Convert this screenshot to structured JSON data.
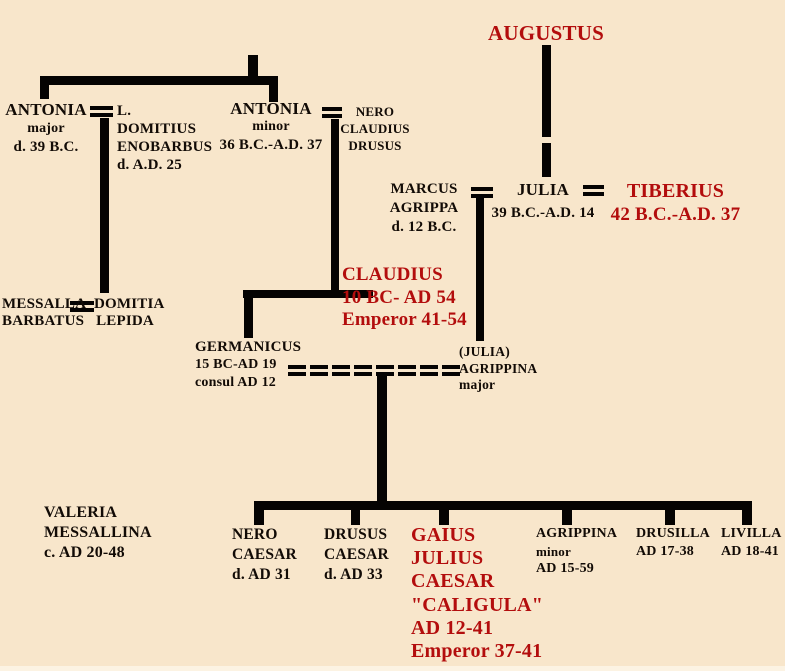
{
  "palette": {
    "background": "#f8e6cb",
    "text_black": "#120b06",
    "text_red": "#b30d0d",
    "line_black": "#050302"
  },
  "people": {
    "augustus": {
      "lines": [
        "AUGUSTUS"
      ]
    },
    "antonia_major": {
      "lines": [
        "ANTONIA",
        "major",
        "d. 39 B.C."
      ]
    },
    "l_domitius": {
      "lines": [
        "L.",
        "DOMITIUS",
        "ENOBARBUS",
        "d. A.D. 25"
      ]
    },
    "antonia_minor": {
      "lines": [
        "ANTONIA",
        "minor",
        "36 B.C.-A.D. 37"
      ]
    },
    "nero_drusus": {
      "lines": [
        "NERO",
        "CLAUDIUS",
        "DRUSUS"
      ]
    },
    "marcus_agrippa": {
      "lines": [
        "MARCUS",
        "AGRIPPA",
        "d. 12 B.C."
      ]
    },
    "julia": {
      "lines": [
        "JULIA",
        "39 B.C.-A.D. 14"
      ]
    },
    "tiberius": {
      "lines": [
        "TIBERIUS",
        "42 B.C.-A.D. 37"
      ]
    },
    "messalla": {
      "lines": [
        "MESSALLA",
        "BARBATUS"
      ]
    },
    "domitia": {
      "lines": [
        "DOMITIA",
        "LEPIDA"
      ]
    },
    "claudius": {
      "lines": [
        "CLAUDIUS",
        "10 BC- AD 54",
        "Emperor 41-54"
      ]
    },
    "germanicus": {
      "lines": [
        "GERMANICUS",
        "15 BC-AD 19",
        "consul AD 12"
      ]
    },
    "agrippina_major": {
      "lines": [
        "(JULIA)",
        "AGRIPPINA",
        "major"
      ]
    },
    "valeria": {
      "lines": [
        "VALERIA",
        "MESSALLINA",
        "c. AD 20-48"
      ]
    },
    "nero_caesar": {
      "lines": [
        "NERO",
        "CAESAR",
        "d. AD 31"
      ]
    },
    "drusus_caesar": {
      "lines": [
        "DRUSUS",
        "CAESAR",
        "d. AD 33"
      ]
    },
    "caligula": {
      "lines": [
        "GAIUS",
        "JULIUS",
        "CAESAR",
        "\"CALIGULA\"",
        "AD 12-41",
        "Emperor 37-41"
      ]
    },
    "agrippina_minor": {
      "lines": [
        "AGRIPPINA",
        "minor",
        "AD 15-59"
      ]
    },
    "drusilla": {
      "lines": [
        "DRUSILLA",
        "AD 17-38"
      ]
    },
    "livilla": {
      "lines": [
        "LIVILLA",
        "AD 18-41"
      ]
    }
  }
}
